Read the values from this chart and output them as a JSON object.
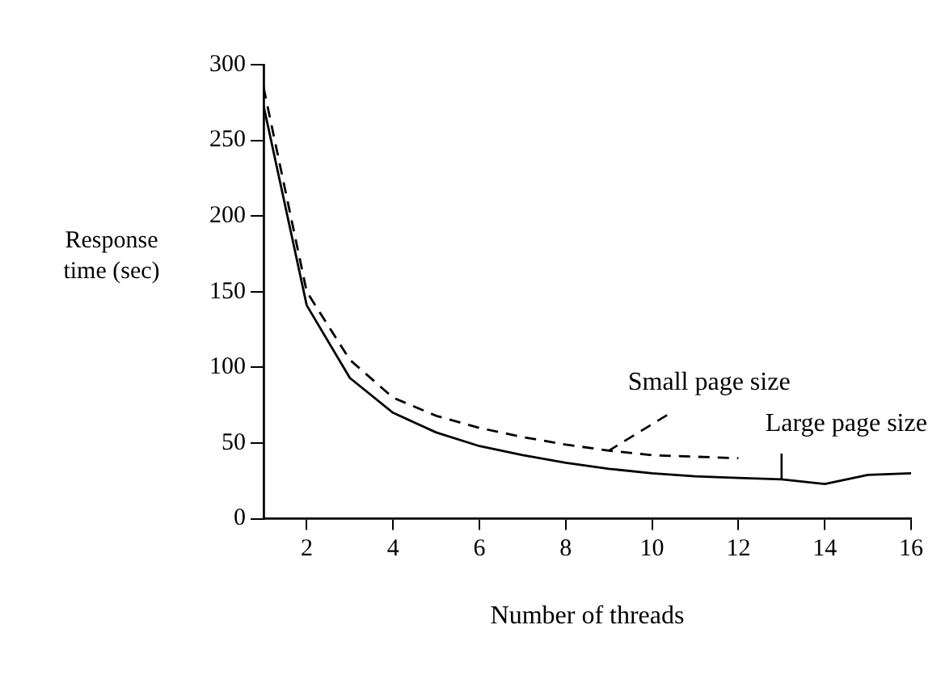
{
  "chart_data": {
    "type": "line",
    "xlabel": "Number of threads",
    "ylabel": "Response time (sec)",
    "xlim": [
      1,
      16
    ],
    "xticks": [
      2,
      4,
      6,
      8,
      10,
      12,
      14,
      16
    ],
    "ylim": [
      0,
      300
    ],
    "yticks": [
      0,
      50,
      100,
      150,
      200,
      250,
      300
    ],
    "grid": false,
    "legend": false,
    "marker": "none",
    "series": [
      {
        "name": "Small page size",
        "color": "#000000",
        "line_style": "dashed",
        "x": [
          1,
          2,
          3,
          4,
          5,
          6,
          7,
          8,
          9,
          10,
          11,
          12
        ],
        "values": [
          285,
          150,
          105,
          80,
          68,
          60,
          54,
          49,
          45,
          42,
          41,
          40
        ]
      },
      {
        "name": "Large page size",
        "color": "#000000",
        "line_style": "solid",
        "x": [
          1,
          2,
          3,
          4,
          5,
          6,
          7,
          8,
          9,
          10,
          11,
          12,
          13,
          14,
          15,
          16
        ],
        "values": [
          273,
          141,
          93,
          70,
          57,
          48,
          42,
          37,
          33,
          30,
          28,
          27,
          26,
          23,
          29,
          30
        ]
      }
    ]
  }
}
